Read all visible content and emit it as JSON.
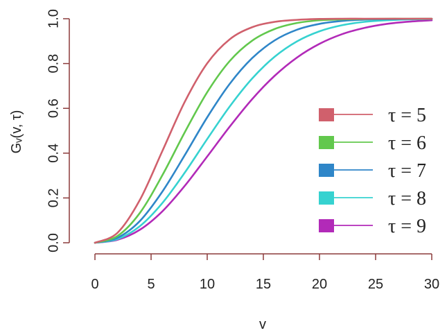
{
  "chart_data": {
    "type": "line",
    "xlabel": "v",
    "ylabel": "Gᵥ(v, τ)",
    "xlim": [
      0,
      30
    ],
    "ylim": [
      0,
      1
    ],
    "xticks": [
      0,
      5,
      10,
      15,
      20,
      25,
      30
    ],
    "yticks": [
      "0.0",
      "0.2",
      "0.4",
      "0.6",
      "0.8",
      "1.0"
    ],
    "legend_position": "right",
    "x": [
      0,
      2,
      4,
      6,
      8,
      10,
      12,
      14,
      16,
      18,
      20,
      22,
      24,
      26,
      28,
      30
    ],
    "series": [
      {
        "name": "τ = 5",
        "color": "#d0606c",
        "values": [
          0.0,
          0.044,
          0.191,
          0.409,
          0.629,
          0.801,
          0.908,
          0.962,
          0.986,
          0.995,
          0.999,
          1.0,
          1.0,
          1.0,
          1.0,
          1.0
        ]
      },
      {
        "name": "τ = 6",
        "color": "#62c84d",
        "values": [
          0.0,
          0.03,
          0.133,
          0.301,
          0.493,
          0.672,
          0.811,
          0.902,
          0.954,
          0.981,
          0.993,
          0.997,
          0.999,
          1.0,
          1.0,
          1.0
        ]
      },
      {
        "name": "τ = 7",
        "color": "#2f86c8",
        "values": [
          0.0,
          0.022,
          0.097,
          0.228,
          0.391,
          0.56,
          0.709,
          0.824,
          0.903,
          0.951,
          0.977,
          0.99,
          0.996,
          0.998,
          0.999,
          1.0
        ]
      },
      {
        "name": "τ = 8",
        "color": "#36d2d0",
        "values": [
          0.0,
          0.016,
          0.074,
          0.177,
          0.313,
          0.463,
          0.608,
          0.733,
          0.83,
          0.899,
          0.944,
          0.971,
          0.986,
          0.993,
          0.997,
          0.999
        ]
      },
      {
        "name": "τ = 9",
        "color": "#b22ab8",
        "values": [
          0.0,
          0.013,
          0.058,
          0.14,
          0.254,
          0.385,
          0.518,
          0.641,
          0.745,
          0.827,
          0.888,
          0.931,
          0.959,
          0.977,
          0.987,
          0.993
        ]
      }
    ]
  },
  "colors": {
    "axis": "#8b3a3a"
  }
}
